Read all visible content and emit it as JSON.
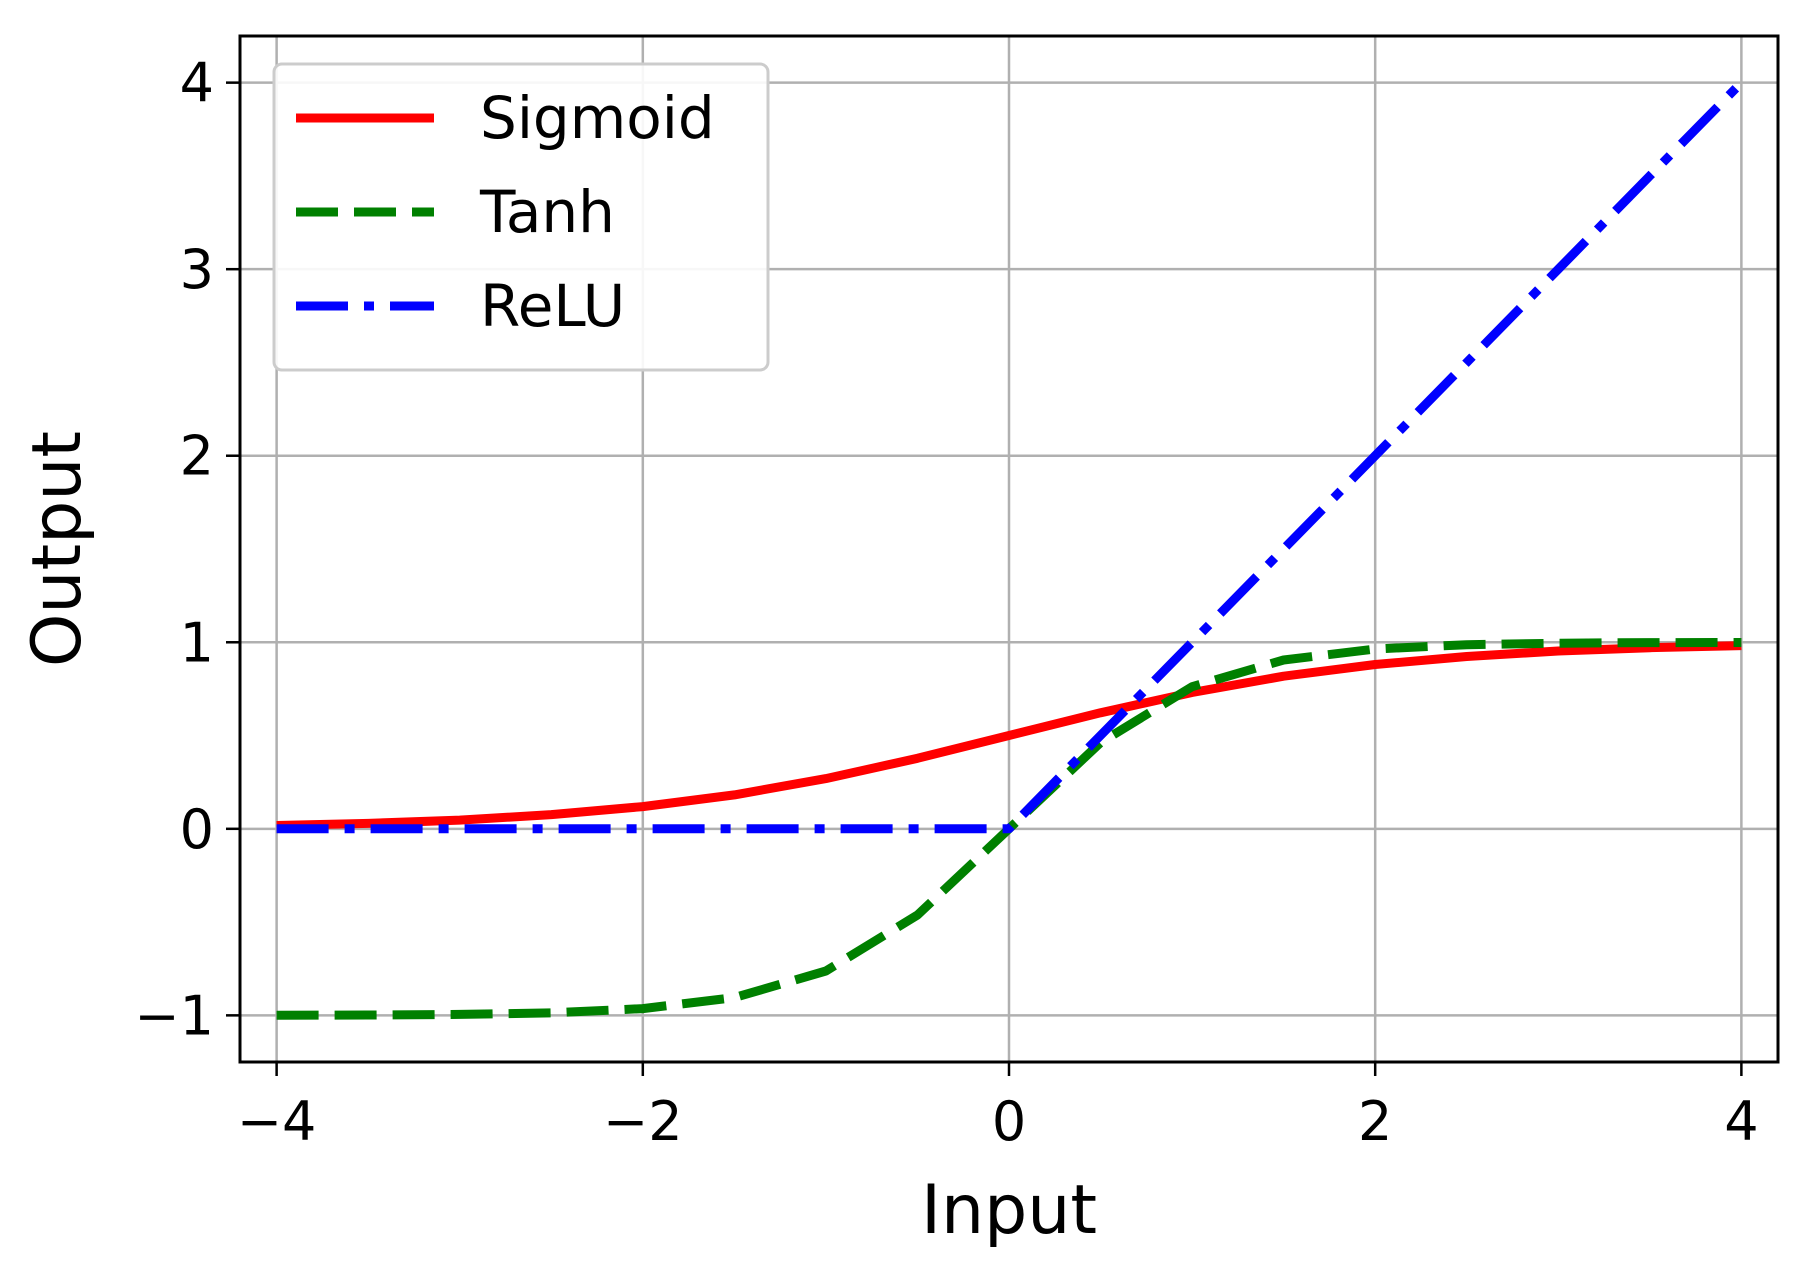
{
  "chart_data": {
    "type": "line",
    "title": "",
    "xlabel": "Input",
    "ylabel": "Output",
    "xlim": [
      -4.2,
      4.2
    ],
    "ylim": [
      -1.25,
      4.25
    ],
    "xticks": [
      -4,
      -2,
      0,
      2,
      4
    ],
    "yticks": [
      -1,
      0,
      1,
      2,
      3,
      4
    ],
    "xtick_labels": [
      "−4",
      "−2",
      "0",
      "2",
      "4"
    ],
    "ytick_labels": [
      "−1",
      "0",
      "1",
      "2",
      "3",
      "4"
    ],
    "grid": true,
    "legend_position": "top-left",
    "x": [
      -4,
      -3.5,
      -3,
      -2.5,
      -2,
      -1.5,
      -1,
      -0.5,
      0,
      0.5,
      1,
      1.5,
      2,
      2.5,
      3,
      3.5,
      4
    ],
    "series": [
      {
        "name": "Sigmoid",
        "color": "#ff0000",
        "style": "solid",
        "values": [
          0.018,
          0.029,
          0.047,
          0.076,
          0.119,
          0.182,
          0.269,
          0.378,
          0.5,
          0.622,
          0.731,
          0.818,
          0.881,
          0.924,
          0.953,
          0.971,
          0.982
        ]
      },
      {
        "name": "Tanh",
        "color": "#008000",
        "style": "dashed",
        "values": [
          -0.999,
          -0.998,
          -0.995,
          -0.987,
          -0.964,
          -0.905,
          -0.762,
          -0.462,
          0.0,
          0.462,
          0.762,
          0.905,
          0.964,
          0.987,
          0.995,
          0.998,
          0.999
        ]
      },
      {
        "name": "ReLU",
        "color": "#0000ff",
        "style": "dashdot",
        "values": [
          0,
          0,
          0,
          0,
          0,
          0,
          0,
          0,
          0,
          0.5,
          1.0,
          1.5,
          2.0,
          2.5,
          3.0,
          3.5,
          4.0
        ]
      }
    ]
  }
}
